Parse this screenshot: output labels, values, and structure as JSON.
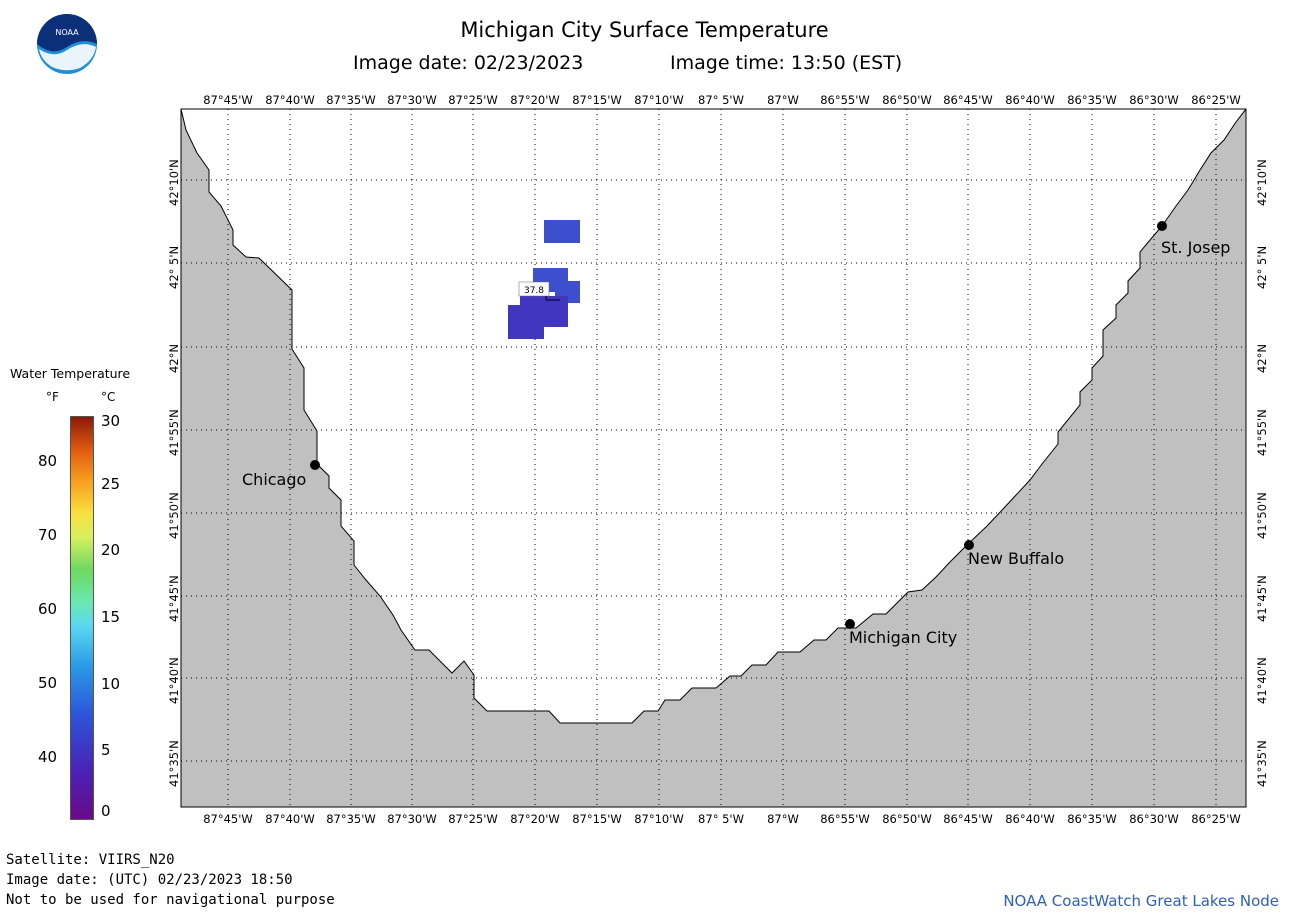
{
  "header": {
    "title": "Michigan City Surface Temperature",
    "image_date": "Image date: 02/23/2023",
    "image_time": "Image time: 13:50 (EST)"
  },
  "longitudes": [
    "87°45'W",
    "87°40'W",
    "87°35'W",
    "87°30'W",
    "87°25'W",
    "87°20'W",
    "87°15'W",
    "87°10'W",
    "87° 5'W",
    "87°W",
    "86°55'W",
    "86°50'W",
    "86°45'W",
    "86°40'W",
    "86°35'W",
    "86°30'W",
    "86°25'W"
  ],
  "latitudes": [
    "42°10'N",
    "42° 5'N",
    "42°N",
    "41°55'N",
    "41°50'N",
    "41°45'N",
    "41°40'N",
    "41°35'N"
  ],
  "cities": [
    {
      "name": "Chicago"
    },
    {
      "name": "St. Josep"
    },
    {
      "name": "New Buffalo"
    },
    {
      "name": "Michigan City"
    }
  ],
  "probe": {
    "value": "37.8"
  },
  "legend": {
    "title": "Water Temperature",
    "unit_f": "°F",
    "unit_c": "°C",
    "f_ticks": [
      "80",
      "70",
      "60",
      "50",
      "40"
    ],
    "c_ticks": [
      "30",
      "25",
      "20",
      "15",
      "10",
      "5",
      "0"
    ]
  },
  "footer": {
    "satellite": "Satellite: VIIRS_N20",
    "utc_date": "Image date: (UTC) 02/23/2023  18:50",
    "disclaimer": "Not to be used for navigational purpose",
    "credit": "NOAA CoastWatch Great Lakes Node"
  },
  "colors": {
    "land": "#c0c0c0",
    "water": "#ffffff",
    "sst_pixel_light": "#3c4fcc",
    "sst_pixel_dark": "#4136c0",
    "credit_text": "#2f60b8"
  }
}
